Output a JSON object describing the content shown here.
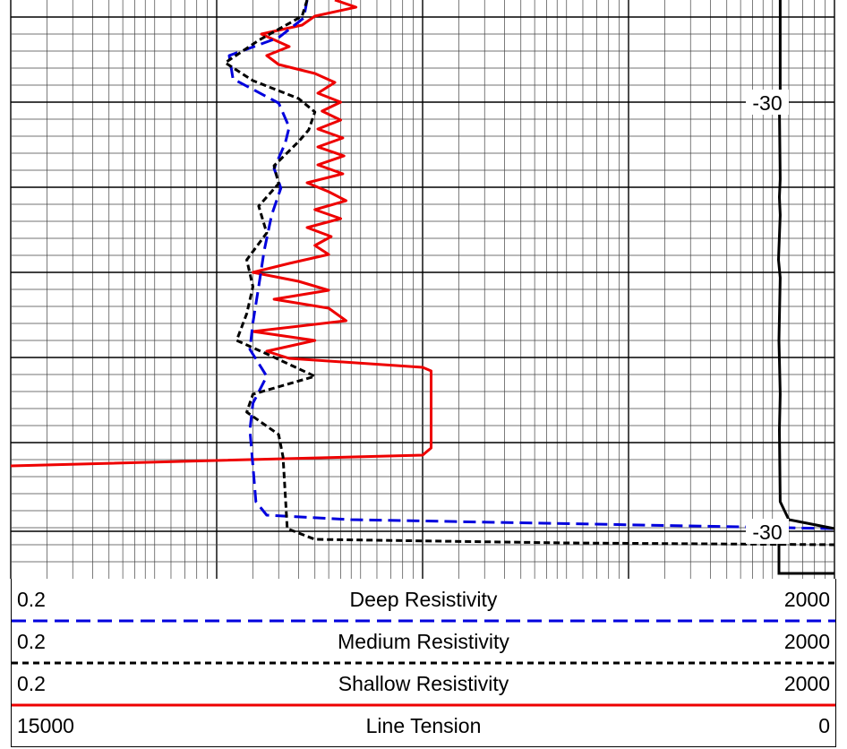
{
  "depth_labels": [
    "-30",
    "-30"
  ],
  "legend": [
    {
      "min": "0.2",
      "name": "Deep Resistivity",
      "max": "2000",
      "color": "#0000dd",
      "style": "dashed"
    },
    {
      "min": "0.2",
      "name": "Medium Resistivity",
      "max": "2000",
      "color": "#000000",
      "style": "dashed"
    },
    {
      "min": "0.2",
      "name": "Shallow Resistivity",
      "max": "2000",
      "color": "#ee0000",
      "style": "solid"
    },
    {
      "min": "15000",
      "name": "Line Tension",
      "max": "0",
      "color": "#000000",
      "style": "solid"
    }
  ],
  "chart_data": {
    "type": "line",
    "x_scale": "log",
    "xlim": [
      0.2,
      2000
    ],
    "grid": true,
    "depth_unit_note": "",
    "series": [
      {
        "name": "Shallow Resistivity",
        "color": "#ee0000",
        "points": [
          [
            7.5,
            0
          ],
          [
            9.5,
            8
          ],
          [
            6,
            18
          ],
          [
            5.2,
            28
          ],
          [
            3.3,
            38
          ],
          [
            4.5,
            52
          ],
          [
            3.5,
            62
          ],
          [
            4,
            72
          ],
          [
            6,
            82
          ],
          [
            7.5,
            92
          ],
          [
            6.2,
            104
          ],
          [
            8,
            114
          ],
          [
            6.5,
            124
          ],
          [
            8,
            134
          ],
          [
            6.2,
            144
          ],
          [
            8.2,
            154
          ],
          [
            6.2,
            164
          ],
          [
            8.3,
            174
          ],
          [
            6.2,
            184
          ],
          [
            8.2,
            194
          ],
          [
            5.5,
            204
          ],
          [
            7,
            214
          ],
          [
            8.5,
            224
          ],
          [
            6,
            234
          ],
          [
            8,
            244
          ],
          [
            5.5,
            254
          ],
          [
            7.2,
            264
          ],
          [
            6,
            274
          ],
          [
            7,
            284
          ],
          [
            4.5,
            294
          ],
          [
            3,
            304
          ],
          [
            5,
            314
          ],
          [
            7,
            324
          ],
          [
            3.8,
            334
          ],
          [
            7,
            344
          ],
          [
            8.5,
            358
          ],
          [
            3,
            370
          ],
          [
            6,
            380
          ],
          [
            3.5,
            392
          ],
          [
            4.5,
            400
          ],
          [
            20,
            410
          ],
          [
            22,
            414
          ],
          [
            22,
            500
          ],
          [
            20,
            508
          ],
          [
            0.2,
            520
          ]
        ]
      },
      {
        "name": "Deep Resistivity",
        "color": "#0000dd",
        "points": [
          [
            5.5,
            0
          ],
          [
            5.3,
            20
          ],
          [
            4,
            42
          ],
          [
            2.3,
            62
          ],
          [
            2.4,
            88
          ],
          [
            4,
            115
          ],
          [
            4.5,
            142
          ],
          [
            4.3,
            160
          ],
          [
            3.8,
            188
          ],
          [
            4.1,
            210
          ],
          [
            3.7,
            240
          ],
          [
            3.4,
            280
          ],
          [
            3.2,
            320
          ],
          [
            3,
            360
          ],
          [
            2.9,
            390
          ],
          [
            3.5,
            420
          ],
          [
            3,
            450
          ],
          [
            2.9,
            480
          ],
          [
            3,
            520
          ],
          [
            3.1,
            560
          ],
          [
            3.5,
            575
          ],
          [
            9,
            580
          ],
          [
            2000,
            590
          ]
        ]
      },
      {
        "name": "Medium Resistivity",
        "color": "#000000",
        "points": [
          [
            5.5,
            0
          ],
          [
            5.2,
            18
          ],
          [
            3.2,
            45
          ],
          [
            2.2,
            70
          ],
          [
            3,
            90
          ],
          [
            5,
            110
          ],
          [
            6,
            125
          ],
          [
            5.6,
            145
          ],
          [
            5,
            158
          ],
          [
            3.8,
            185
          ],
          [
            4,
            205
          ],
          [
            3.2,
            230
          ],
          [
            3.5,
            260
          ],
          [
            2.8,
            290
          ],
          [
            3,
            320
          ],
          [
            2.8,
            350
          ],
          [
            2.5,
            380
          ],
          [
            3.5,
            395
          ],
          [
            6,
            420
          ],
          [
            3,
            440
          ],
          [
            2.8,
            460
          ],
          [
            4,
            485
          ],
          [
            4.2,
            510
          ],
          [
            4.3,
            550
          ],
          [
            4.4,
            590
          ],
          [
            6,
            602
          ],
          [
            100,
            606
          ],
          [
            2000,
            608
          ]
        ]
      },
      {
        "name": "Line Tension",
        "color": "#000000",
        "points": [
          [
            1090,
            0
          ],
          [
            1090,
            110
          ],
          [
            1080,
            120
          ],
          [
            1090,
            200
          ],
          [
            1080,
            220
          ],
          [
            1090,
            240
          ],
          [
            1070,
            290
          ],
          [
            1090,
            310
          ],
          [
            1075,
            380
          ],
          [
            1090,
            440
          ],
          [
            1080,
            480
          ],
          [
            1090,
            560
          ],
          [
            1200,
            580
          ],
          [
            2000,
            590
          ]
        ]
      }
    ]
  }
}
